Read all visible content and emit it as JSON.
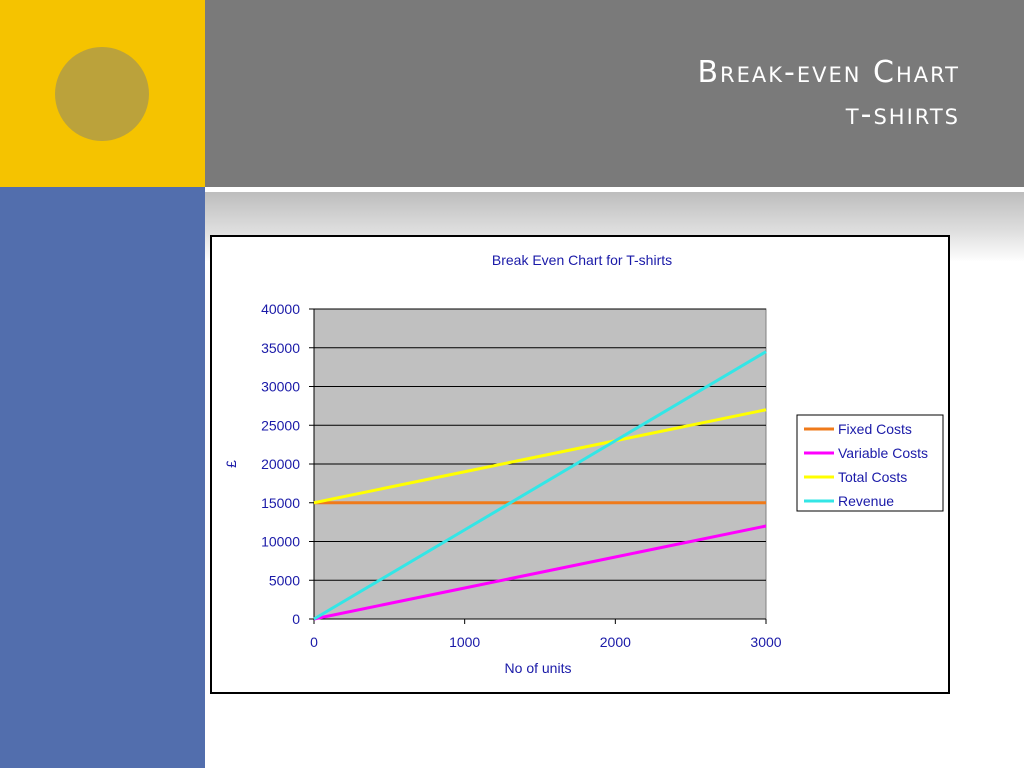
{
  "slide": {
    "title_line1": "Break-even Chart",
    "title_line2": "t-shirts"
  },
  "colors": {
    "yellow_block": "#f5c300",
    "circle": "#bba23b",
    "blue_block": "#526ead",
    "header_gray": "#7a7a7a",
    "plot_background": "#c0c0c0",
    "chart_text": "#1a1aa8"
  },
  "chart_data": {
    "type": "line",
    "title": "Break Even Chart for T-shirts",
    "xlabel": "No of units",
    "ylabel": "£",
    "x": [
      0,
      1000,
      2000,
      3000
    ],
    "xlim": [
      0,
      3000
    ],
    "ylim": [
      0,
      40000
    ],
    "xticks": [
      "0",
      "1000",
      "2000",
      "3000"
    ],
    "yticks": [
      "0",
      "5000",
      "10000",
      "15000",
      "20000",
      "25000",
      "30000",
      "35000",
      "40000"
    ],
    "grid": "horizontal",
    "legend_position": "right",
    "series": [
      {
        "name": "Fixed Costs",
        "color": "#ef7a1a",
        "values": [
          15000,
          15000,
          15000,
          15000
        ]
      },
      {
        "name": "Variable Costs",
        "color": "#ff00ff",
        "values": [
          0,
          4000,
          8000,
          12000
        ]
      },
      {
        "name": "Total Costs",
        "color": "#ffff00",
        "values": [
          15000,
          19000,
          23000,
          27000
        ]
      },
      {
        "name": "Revenue",
        "color": "#33e6e6",
        "values": [
          0,
          11500,
          23000,
          34500
        ]
      }
    ]
  }
}
